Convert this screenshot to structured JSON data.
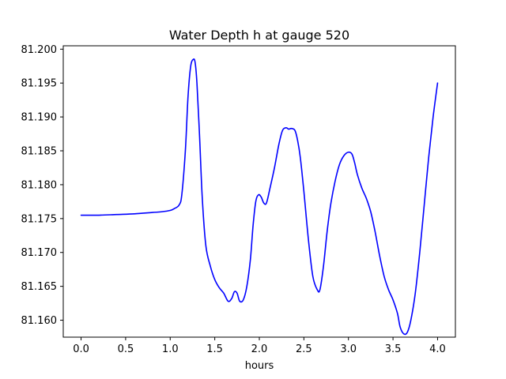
{
  "chart_data": {
    "type": "line",
    "title": "Water Depth h at gauge 520",
    "xlabel": "hours",
    "ylabel": "",
    "xlim": [
      -0.2,
      4.2
    ],
    "ylim": [
      81.1575,
      81.2005
    ],
    "x_ticks": [
      0.0,
      0.5,
      1.0,
      1.5,
      2.0,
      2.5,
      3.0,
      3.5,
      4.0
    ],
    "x_tick_labels": [
      "0.0",
      "0.5",
      "1.0",
      "1.5",
      "2.0",
      "2.5",
      "3.0",
      "3.5",
      "4.0"
    ],
    "y_ticks": [
      81.16,
      81.165,
      81.17,
      81.175,
      81.18,
      81.185,
      81.19,
      81.195,
      81.2
    ],
    "y_tick_labels": [
      "81.160",
      "81.165",
      "81.170",
      "81.175",
      "81.180",
      "81.185",
      "81.190",
      "81.195",
      "81.200"
    ],
    "grid": false,
    "legend": "none",
    "series": [
      {
        "color": "#0000ff",
        "x": [
          0.0,
          0.2,
          0.4,
          0.6,
          0.8,
          0.9,
          1.0,
          1.05,
          1.1,
          1.13,
          1.17,
          1.2,
          1.23,
          1.26,
          1.28,
          1.3,
          1.33,
          1.36,
          1.4,
          1.45,
          1.5,
          1.55,
          1.6,
          1.65,
          1.69,
          1.72,
          1.75,
          1.78,
          1.82,
          1.86,
          1.9,
          1.93,
          1.96,
          1.99,
          2.02,
          2.05,
          2.08,
          2.12,
          2.17,
          2.22,
          2.26,
          2.3,
          2.33,
          2.36,
          2.4,
          2.43,
          2.46,
          2.5,
          2.55,
          2.6,
          2.65,
          2.68,
          2.72,
          2.76,
          2.8,
          2.85,
          2.9,
          2.95,
          3.0,
          3.04,
          3.07,
          3.1,
          3.15,
          3.2,
          3.25,
          3.3,
          3.35,
          3.4,
          3.45,
          3.5,
          3.55,
          3.58,
          3.62,
          3.66,
          3.7,
          3.75,
          3.8,
          3.85,
          3.9,
          3.95,
          4.0
        ],
        "y": [
          81.1755,
          81.1755,
          81.1756,
          81.1757,
          81.1759,
          81.176,
          81.1762,
          81.1765,
          81.177,
          81.1785,
          81.185,
          81.193,
          81.1975,
          81.1985,
          81.198,
          81.195,
          81.187,
          81.178,
          81.171,
          81.168,
          81.166,
          81.1648,
          81.164,
          81.1628,
          81.1632,
          81.1642,
          81.164,
          81.1628,
          81.163,
          81.165,
          81.169,
          81.174,
          81.1775,
          81.1785,
          81.1782,
          81.1773,
          81.1773,
          81.1795,
          81.1825,
          81.186,
          81.188,
          81.1884,
          81.1882,
          81.1883,
          81.188,
          81.1865,
          81.184,
          81.179,
          81.172,
          81.1665,
          81.1645,
          81.1645,
          81.168,
          81.173,
          81.177,
          81.1805,
          81.183,
          81.1843,
          81.1848,
          81.1845,
          81.1832,
          81.1815,
          81.1795,
          81.178,
          81.176,
          81.173,
          81.1695,
          81.1665,
          81.1645,
          81.163,
          81.161,
          81.159,
          81.158,
          81.1582,
          81.16,
          81.164,
          81.17,
          81.177,
          81.184,
          81.19,
          81.195
        ]
      }
    ]
  }
}
